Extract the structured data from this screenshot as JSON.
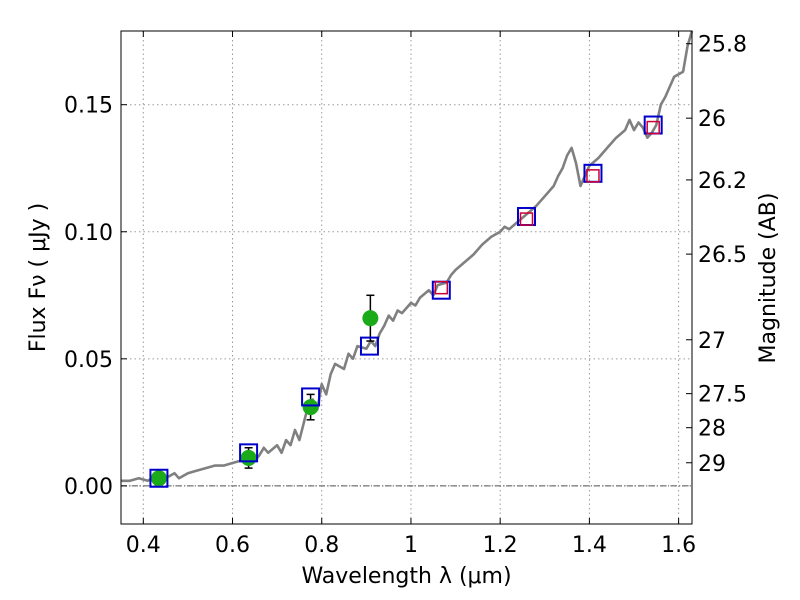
{
  "chart_data": {
    "type": "scatter",
    "xlabel": "Wavelength  λ (μm)",
    "ylabel": "Flux  Fν  ( μJy )",
    "ylabel_right": "Magnitude (AB)",
    "xlim": [
      0.35,
      1.63
    ],
    "ylim": [
      -0.015,
      0.179
    ],
    "grid": true,
    "x_ticks": [
      {
        "value": 0.4,
        "label": "0.4"
      },
      {
        "value": 0.6,
        "label": "0.6"
      },
      {
        "value": 0.8,
        "label": "0.8"
      },
      {
        "value": 1.0,
        "label": "1"
      },
      {
        "value": 1.2,
        "label": "1.2"
      },
      {
        "value": 1.4,
        "label": "1.4"
      },
      {
        "value": 1.6,
        "label": "1.6"
      }
    ],
    "y_ticks": [
      {
        "value": 0.0,
        "label": "0.00"
      },
      {
        "value": 0.05,
        "label": "0.05"
      },
      {
        "value": 0.1,
        "label": "0.10"
      },
      {
        "value": 0.15,
        "label": "0.15"
      }
    ],
    "right_ticks": [
      {
        "flux": 0.174,
        "label": "25.8"
      },
      {
        "flux": 0.1447,
        "label": "26"
      },
      {
        "flux": 0.1204,
        "label": "26.2"
      },
      {
        "flux": 0.0912,
        "label": "26.5"
      },
      {
        "flux": 0.0575,
        "label": "27"
      },
      {
        "flux": 0.0363,
        "label": "27.5"
      },
      {
        "flux": 0.0229,
        "label": "28"
      },
      {
        "flux": 0.0091,
        "label": "29"
      }
    ],
    "colors": {
      "spectrum": "#808080",
      "blue_square": "#0000cc",
      "red_square": "#cc0033",
      "green_dot": "#1aaa1a",
      "grid": "#9a9a9a",
      "error_bar": "#000000"
    },
    "spectrum": [
      [
        0.35,
        0.002
      ],
      [
        0.37,
        0.002
      ],
      [
        0.39,
        0.003
      ],
      [
        0.41,
        0.002
      ],
      [
        0.43,
        0.004
      ],
      [
        0.45,
        0.003
      ],
      [
        0.47,
        0.005
      ],
      [
        0.48,
        0.003
      ],
      [
        0.5,
        0.005
      ],
      [
        0.52,
        0.006
      ],
      [
        0.54,
        0.007
      ],
      [
        0.56,
        0.008
      ],
      [
        0.58,
        0.008
      ],
      [
        0.6,
        0.009
      ],
      [
        0.62,
        0.01
      ],
      [
        0.64,
        0.012
      ],
      [
        0.65,
        0.01
      ],
      [
        0.66,
        0.012
      ],
      [
        0.67,
        0.015
      ],
      [
        0.68,
        0.013
      ],
      [
        0.7,
        0.016
      ],
      [
        0.71,
        0.013
      ],
      [
        0.72,
        0.018
      ],
      [
        0.73,
        0.016
      ],
      [
        0.74,
        0.022
      ],
      [
        0.75,
        0.018
      ],
      [
        0.76,
        0.025
      ],
      [
        0.77,
        0.032
      ],
      [
        0.78,
        0.034
      ],
      [
        0.79,
        0.03
      ],
      [
        0.8,
        0.04
      ],
      [
        0.81,
        0.036
      ],
      [
        0.82,
        0.044
      ],
      [
        0.83,
        0.048
      ],
      [
        0.85,
        0.046
      ],
      [
        0.86,
        0.052
      ],
      [
        0.87,
        0.05
      ],
      [
        0.88,
        0.055
      ],
      [
        0.9,
        0.054
      ],
      [
        0.91,
        0.057
      ],
      [
        0.92,
        0.055
      ],
      [
        0.93,
        0.06
      ],
      [
        0.94,
        0.063
      ],
      [
        0.95,
        0.067
      ],
      [
        0.96,
        0.065
      ],
      [
        0.97,
        0.069
      ],
      [
        0.98,
        0.068
      ],
      [
        1.0,
        0.072
      ],
      [
        1.01,
        0.071
      ],
      [
        1.02,
        0.074
      ],
      [
        1.04,
        0.077
      ],
      [
        1.05,
        0.075
      ],
      [
        1.06,
        0.079
      ],
      [
        1.08,
        0.08
      ],
      [
        1.09,
        0.083
      ],
      [
        1.1,
        0.085
      ],
      [
        1.12,
        0.088
      ],
      [
        1.14,
        0.091
      ],
      [
        1.16,
        0.095
      ],
      [
        1.18,
        0.098
      ],
      [
        1.2,
        0.1
      ],
      [
        1.21,
        0.102
      ],
      [
        1.22,
        0.101
      ],
      [
        1.24,
        0.104
      ],
      [
        1.26,
        0.107
      ],
      [
        1.28,
        0.11
      ],
      [
        1.3,
        0.114
      ],
      [
        1.32,
        0.118
      ],
      [
        1.33,
        0.122
      ],
      [
        1.34,
        0.125
      ],
      [
        1.35,
        0.13
      ],
      [
        1.36,
        0.133
      ],
      [
        1.37,
        0.127
      ],
      [
        1.38,
        0.118
      ],
      [
        1.39,
        0.122
      ],
      [
        1.4,
        0.126
      ],
      [
        1.42,
        0.129
      ],
      [
        1.44,
        0.133
      ],
      [
        1.46,
        0.137
      ],
      [
        1.48,
        0.14
      ],
      [
        1.49,
        0.144
      ],
      [
        1.5,
        0.14
      ],
      [
        1.51,
        0.143
      ],
      [
        1.52,
        0.141
      ],
      [
        1.53,
        0.137
      ],
      [
        1.54,
        0.139
      ],
      [
        1.55,
        0.142
      ],
      [
        1.56,
        0.15
      ],
      [
        1.57,
        0.153
      ],
      [
        1.58,
        0.157
      ],
      [
        1.59,
        0.161
      ],
      [
        1.61,
        0.163
      ],
      [
        1.62,
        0.173
      ],
      [
        1.63,
        0.179
      ]
    ],
    "blue_squares": [
      [
        0.435,
        0.003
      ],
      [
        0.636,
        0.013
      ],
      [
        0.775,
        0.035
      ],
      [
        0.907,
        0.055
      ],
      [
        1.068,
        0.077
      ],
      [
        1.259,
        0.106
      ],
      [
        1.408,
        0.123
      ],
      [
        1.543,
        0.142
      ]
    ],
    "red_squares": [
      [
        1.068,
        0.078
      ],
      [
        1.259,
        0.105
      ],
      [
        1.408,
        0.122
      ],
      [
        1.543,
        0.141
      ]
    ],
    "green_points": [
      {
        "x": 0.435,
        "y": 0.003,
        "err": 0.0
      },
      {
        "x": 0.636,
        "y": 0.011,
        "err": 0.004
      },
      {
        "x": 0.775,
        "y": 0.031,
        "err": 0.005
      },
      {
        "x": 0.909,
        "y": 0.066,
        "err": 0.009
      }
    ],
    "zero_line": 0.0
  }
}
